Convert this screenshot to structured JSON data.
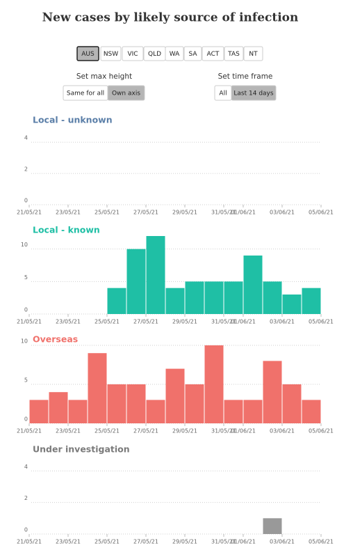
{
  "title": "New cases by likely source of infection",
  "regions": [
    "AUS",
    "NSW",
    "VIC",
    "QLD",
    "WA",
    "SA",
    "ACT",
    "TAS",
    "NT"
  ],
  "max_height": {
    "label": "Set max height",
    "options": [
      "Same for all",
      "Own axis"
    ]
  },
  "time_frame": {
    "label": "Set time frame",
    "options": [
      "All",
      "Last 14 days"
    ]
  },
  "chart_data": [
    {
      "type": "bar",
      "title": "Local - unknown",
      "title_color": "#5b7fa8",
      "color": "#5b7fa8",
      "categories": [
        "21/05/21",
        null,
        "23/05/21",
        null,
        "25/05/21",
        null,
        "27/05/21",
        null,
        "29/05/21",
        null,
        "31/05/21",
        "01/06/21",
        null,
        "03/06/21",
        null,
        "05/06/21"
      ],
      "values": [
        0,
        0,
        0,
        0,
        0,
        0,
        0,
        0,
        0,
        0,
        0,
        0,
        0,
        0,
        0,
        null
      ],
      "ylim": [
        0,
        4.5
      ],
      "yticks": [
        0,
        2,
        4
      ],
      "grid": true
    },
    {
      "type": "bar",
      "title": "Local - known",
      "title_color": "#1fbfa5",
      "color": "#1fbfa5",
      "categories": [
        "21/05/21",
        null,
        "23/05/21",
        null,
        "25/05/21",
        null,
        "27/05/21",
        null,
        "29/05/21",
        null,
        "31/05/21",
        "01/06/21",
        null,
        "03/06/21",
        null,
        "05/06/21"
      ],
      "values": [
        0,
        0,
        0,
        0,
        4,
        10,
        12,
        4,
        5,
        5,
        5,
        9,
        5,
        3,
        4,
        null
      ],
      "ylim": [
        0,
        12
      ],
      "yticks": [
        0,
        5,
        10
      ],
      "grid": true
    },
    {
      "type": "bar",
      "title": "Overseas",
      "title_color": "#f0716b",
      "color": "#f0716b",
      "categories": [
        "21/05/21",
        null,
        "23/05/21",
        null,
        "25/05/21",
        null,
        "27/05/21",
        null,
        "29/05/21",
        null,
        "31/05/21",
        "01/06/21",
        null,
        "03/06/21",
        null,
        "05/06/21"
      ],
      "values": [
        3,
        4,
        3,
        9,
        5,
        5,
        3,
        7,
        5,
        10,
        3,
        3,
        8,
        5,
        3,
        null
      ],
      "ylim": [
        0,
        10
      ],
      "yticks": [
        0,
        5,
        10
      ],
      "grid": true
    },
    {
      "type": "bar",
      "title": "Under investigation",
      "title_color": "#7a7a7a",
      "color": "#999999",
      "categories": [
        "21/05/21",
        null,
        "23/05/21",
        null,
        "25/05/21",
        null,
        "27/05/21",
        null,
        "29/05/21",
        null,
        "31/05/21",
        "01/06/21",
        null,
        "03/06/21",
        null,
        "05/06/21"
      ],
      "values": [
        0,
        0,
        0,
        0,
        0,
        0,
        0,
        0,
        0,
        0,
        0,
        0,
        1,
        0,
        0,
        null
      ],
      "ylim": [
        0,
        4.5
      ],
      "yticks": [
        0,
        2,
        4
      ],
      "grid": true
    }
  ]
}
